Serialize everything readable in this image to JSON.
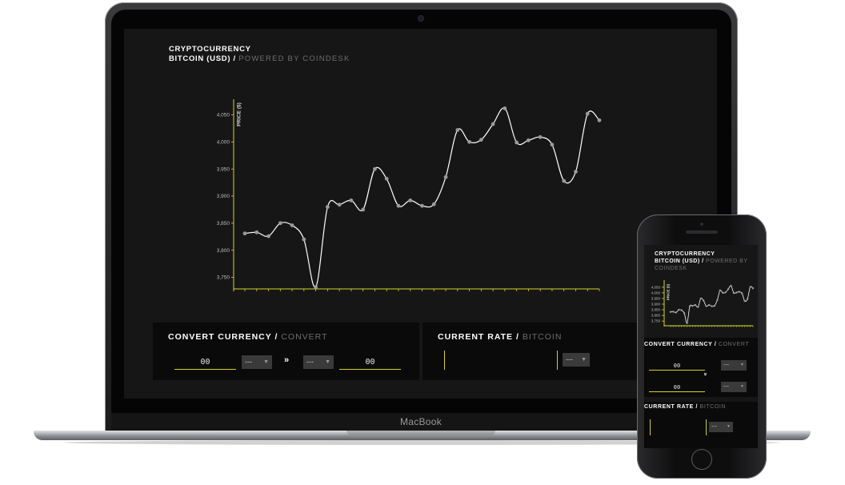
{
  "laptop": {
    "brand": "MacBook",
    "header": {
      "title": "CRYPTOCURRENCY",
      "subtitle": "BITCOIN (USD)",
      "separator": "/",
      "powered_by": "POWERED BY COINDESK"
    },
    "convert_panel": {
      "title": "CONVERT CURRENCY",
      "separator": "/",
      "subtitle": "CONVERT",
      "from_amount": "00",
      "from_currency": "---",
      "arrow": "»",
      "to_currency": "---",
      "to_amount": "00"
    },
    "rate_panel": {
      "title": "CURRENT RATE",
      "separator": "/",
      "subtitle": "BITCOIN",
      "value": "",
      "currency": "---"
    }
  },
  "phone": {
    "header": {
      "title": "CRYPTOCURRENCY",
      "subtitle": "BITCOIN (USD)",
      "separator": "/",
      "powered_by": "POWERED BY COINDESK"
    },
    "convert_panel": {
      "title": "CONVERT CURRENCY",
      "separator": "/",
      "subtitle": "CONVERT",
      "from_amount": "00",
      "from_currency": "---",
      "arrow": "»",
      "to_amount": "00",
      "to_currency": "---"
    },
    "rate_panel": {
      "title": "CURRENT RATE",
      "separator": "/",
      "subtitle": "BITCOIN",
      "value": "",
      "currency": "---"
    }
  },
  "colors": {
    "accent": "#d8d12a",
    "background": "#161616",
    "panel": "#0a0a0a",
    "line": "#ffffff",
    "point": "#9a9a9a",
    "muted_text": "#6e6e6e"
  },
  "chart_data": {
    "type": "line",
    "ylabel": "PRICE ($)",
    "ylim": [
      3730,
      4070
    ],
    "yticks": [
      "3,750",
      "3,800",
      "3,850",
      "3,900",
      "3,950",
      "4,000",
      "4,050"
    ],
    "ytick_values": [
      3750,
      3800,
      3850,
      3900,
      3950,
      4000,
      4050
    ],
    "values": [
      3831,
      3833,
      3826,
      3850,
      3846,
      3820,
      3732,
      3880,
      3884,
      3892,
      3875,
      3950,
      3932,
      3882,
      3892,
      3882,
      3885,
      3935,
      4022,
      4000,
      4004,
      4033,
      4062,
      3999,
      4003,
      4009,
      3995,
      3928,
      3945,
      4052,
      4040
    ],
    "smooth": true,
    "grid": false,
    "legend": "none"
  }
}
